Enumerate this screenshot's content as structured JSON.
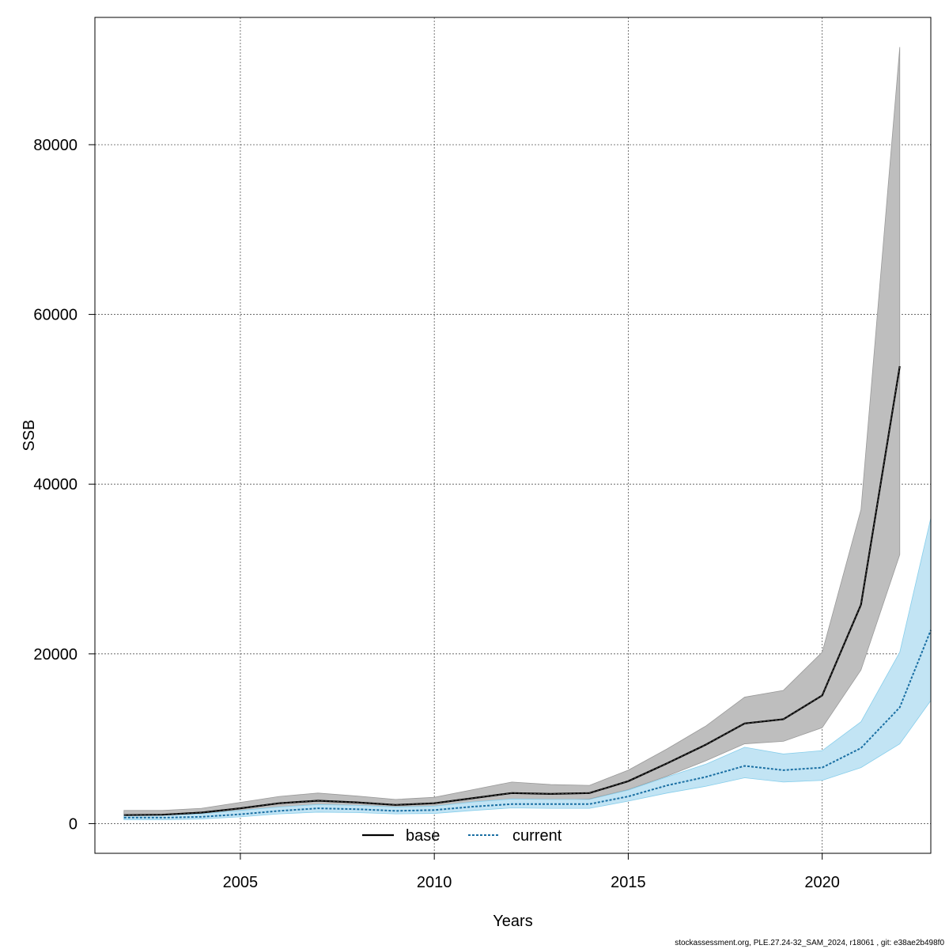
{
  "footer": "stockassessment.org, PLE.27.24-32_SAM_2024, r18061 , git: e38ae2b498f0",
  "chart_data": {
    "type": "line",
    "xlabel": "Years",
    "ylabel": "SSB",
    "xlim": [
      2001.25,
      2022.8
    ],
    "ylim": [
      -3500,
      95000
    ],
    "x_ticks": [
      2005,
      2010,
      2015,
      2020
    ],
    "y_ticks": [
      0,
      20000,
      40000,
      60000,
      80000
    ],
    "grid": true,
    "legend": {
      "placement": "bottom-center",
      "entries": [
        "base",
        "current"
      ]
    },
    "colors": {
      "base_band": "#bebebe",
      "current_band": "#c2e4f4",
      "current_band_edge": "#87ceeb",
      "base_line": "#000000",
      "current_line": "#1a6fa3"
    },
    "series": [
      {
        "name": "base",
        "x": [
          2002,
          2003,
          2004,
          2005,
          2006,
          2007,
          2008,
          2009,
          2010,
          2011,
          2012,
          2013,
          2014,
          2015,
          2016,
          2017,
          2018,
          2019,
          2020,
          2021,
          2022
        ],
        "values": [
          1000,
          1050,
          1300,
          1800,
          2400,
          2700,
          2500,
          2200,
          2400,
          3000,
          3600,
          3500,
          3600,
          5000,
          7100,
          9300,
          11800,
          12300,
          15100,
          25800,
          53900
        ],
        "lower": [
          650,
          700,
          900,
          1300,
          1850,
          2050,
          1900,
          1700,
          1800,
          2400,
          2850,
          2750,
          2900,
          4000,
          5600,
          7400,
          9400,
          9700,
          11300,
          18100,
          31700
        ],
        "upper": [
          1550,
          1550,
          1800,
          2500,
          3200,
          3600,
          3250,
          2850,
          3100,
          4000,
          4900,
          4600,
          4500,
          6300,
          8800,
          11500,
          14900,
          15700,
          20200,
          37000,
          91500
        ]
      },
      {
        "name": "current",
        "x": [
          2002,
          2003,
          2004,
          2005,
          2006,
          2007,
          2008,
          2009,
          2010,
          2011,
          2012,
          2013,
          2014,
          2015,
          2016,
          2017,
          2018,
          2019,
          2020,
          2021,
          2022,
          2022.8
        ],
        "values": [
          700,
          700,
          800,
          1100,
          1500,
          1800,
          1700,
          1500,
          1600,
          2000,
          2300,
          2300,
          2300,
          3200,
          4500,
          5500,
          6800,
          6300,
          6600,
          8900,
          13700,
          22800
        ],
        "lower": [
          450,
          450,
          550,
          800,
          1150,
          1350,
          1300,
          1150,
          1200,
          1550,
          1850,
          1800,
          1800,
          2650,
          3600,
          4400,
          5400,
          4900,
          5100,
          6600,
          9400,
          14500
        ],
        "upper": [
          1000,
          1000,
          1150,
          1550,
          1950,
          2250,
          2150,
          1950,
          2050,
          2550,
          2900,
          2850,
          2850,
          3950,
          5500,
          7000,
          9000,
          8200,
          8600,
          12000,
          20200,
          36000
        ]
      }
    ]
  }
}
